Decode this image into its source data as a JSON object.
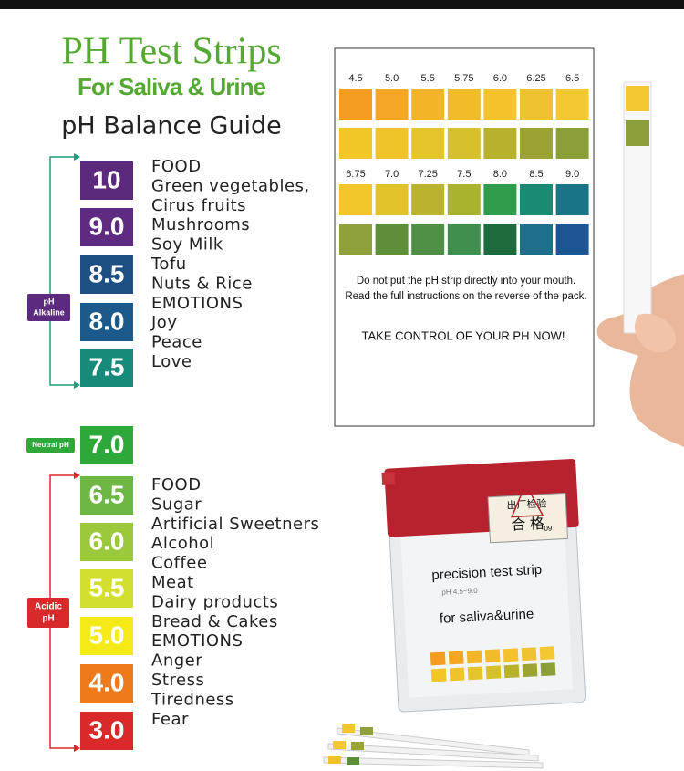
{
  "header": {
    "title": "PH Test Strips",
    "subtitle": "For Saliva & Urine",
    "guide_title": "pH Balance Guide"
  },
  "scale": {
    "alkaline": {
      "label": [
        "pH",
        "Alkaline"
      ],
      "color": "#5c2a7e",
      "bracket_color": "#1f9b7d",
      "levels": [
        {
          "ph": "10",
          "color": "#5b2a7d"
        },
        {
          "ph": "9.0",
          "color": "#5e2b80"
        },
        {
          "ph": "8.5",
          "color": "#1e4f84"
        },
        {
          "ph": "8.0",
          "color": "#1d5a8c"
        },
        {
          "ph": "7.5",
          "color": "#178a7a"
        }
      ],
      "notes": [
        "FOOD",
        "Green vegetables,",
        "Cirus fruits",
        "Mushrooms",
        "Soy Milk",
        "Tofu",
        "Nuts & Rice",
        "EMOTIONS",
        "Joy",
        "Peace",
        "Love"
      ]
    },
    "neutral": {
      "label": [
        "Neutral pH"
      ],
      "color": "#2ea83a",
      "levels": [
        {
          "ph": "7.0",
          "color": "#2ea83a"
        }
      ],
      "notes": []
    },
    "acidic": {
      "label": [
        "Acidic",
        "pH"
      ],
      "color": "#d9292a",
      "bracket_color": "#d9292a",
      "levels": [
        {
          "ph": "6.5",
          "color": "#6fb744"
        },
        {
          "ph": "6.0",
          "color": "#9cc83b"
        },
        {
          "ph": "5.5",
          "color": "#d2df2e"
        },
        {
          "ph": "5.0",
          "color": "#f3ea18"
        },
        {
          "ph": "4.0",
          "color": "#ee7a1c"
        },
        {
          "ph": "3.0",
          "color": "#d9292a"
        }
      ],
      "notes": [
        "FOOD",
        "Sugar",
        "Artificial Sweetners",
        "Alcohol",
        "Coffee",
        "Meat",
        "Dairy products",
        "Bread & Cakes",
        "EMOTIONS",
        "Anger",
        "Stress",
        "Tiredness",
        "Fear"
      ]
    }
  },
  "chart_card": {
    "groups": [
      {
        "labels": [
          "4.5",
          "5.0",
          "5.5",
          "5.75",
          "6.0",
          "6.25",
          "6.5"
        ],
        "swatches": [
          [
            "#f39c1f",
            "#f5a623",
            "#f3b427",
            "#f1bc2a",
            "#f4c22a",
            "#f0c130",
            "#f3c832"
          ],
          [
            "#f3c628",
            "#f0c32a",
            "#e6c52b",
            "#d6c12c",
            "#b7b12e",
            "#9aa435",
            "#8a9f37"
          ]
        ]
      },
      {
        "labels": [
          "6.75",
          "7.0",
          "7.25",
          "7.5",
          "8.0",
          "8.5",
          "9.0"
        ],
        "swatches": [
          [
            "#f3c62a",
            "#e2c22b",
            "#bbb22e",
            "#a9b330",
            "#2e9c4b",
            "#1b8a73",
            "#1a7488"
          ],
          [
            "#8ea13c",
            "#5e8e3a",
            "#4f8f45",
            "#3f8f4f",
            "#1e6a3f",
            "#1f6e8a",
            "#1d5594"
          ]
        ]
      }
    ],
    "note": [
      "Do not put the pH strip directly into your mouth.",
      "Read the full instructions on the reverse of the pack."
    ],
    "cta": "TAKE CONTROL OF YOUR PH NOW!"
  },
  "package": {
    "title": "precision test strip",
    "range": "pH 4.5~9.0",
    "use": "for saliva&urine",
    "seal": [
      "出厂检验",
      "合 格",
      "09"
    ]
  }
}
